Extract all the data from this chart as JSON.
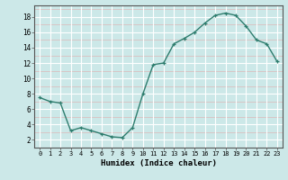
{
  "x": [
    0,
    1,
    2,
    3,
    4,
    5,
    6,
    7,
    8,
    9,
    10,
    11,
    12,
    13,
    14,
    15,
    16,
    17,
    18,
    19,
    20,
    21,
    22,
    23
  ],
  "y": [
    7.5,
    7.0,
    6.8,
    3.2,
    3.6,
    3.2,
    2.8,
    2.4,
    2.3,
    3.6,
    8.0,
    11.8,
    12.0,
    14.5,
    15.2,
    16.0,
    17.2,
    18.2,
    18.5,
    18.2,
    16.8,
    15.0,
    14.5,
    12.2
  ],
  "line_color": "#2e7d6e",
  "marker": "+",
  "bg_color": "#cce8e8",
  "grid_color_white": "#ffffff",
  "grid_color_pink": "#ddb8b8",
  "xlabel": "Humidex (Indice chaleur)",
  "xlim": [
    -0.5,
    23.5
  ],
  "ylim": [
    1,
    19.5
  ],
  "yticks": [
    2,
    4,
    6,
    8,
    10,
    12,
    14,
    16,
    18
  ],
  "xticks": [
    0,
    1,
    2,
    3,
    4,
    5,
    6,
    7,
    8,
    9,
    10,
    11,
    12,
    13,
    14,
    15,
    16,
    17,
    18,
    19,
    20,
    21,
    22,
    23
  ]
}
